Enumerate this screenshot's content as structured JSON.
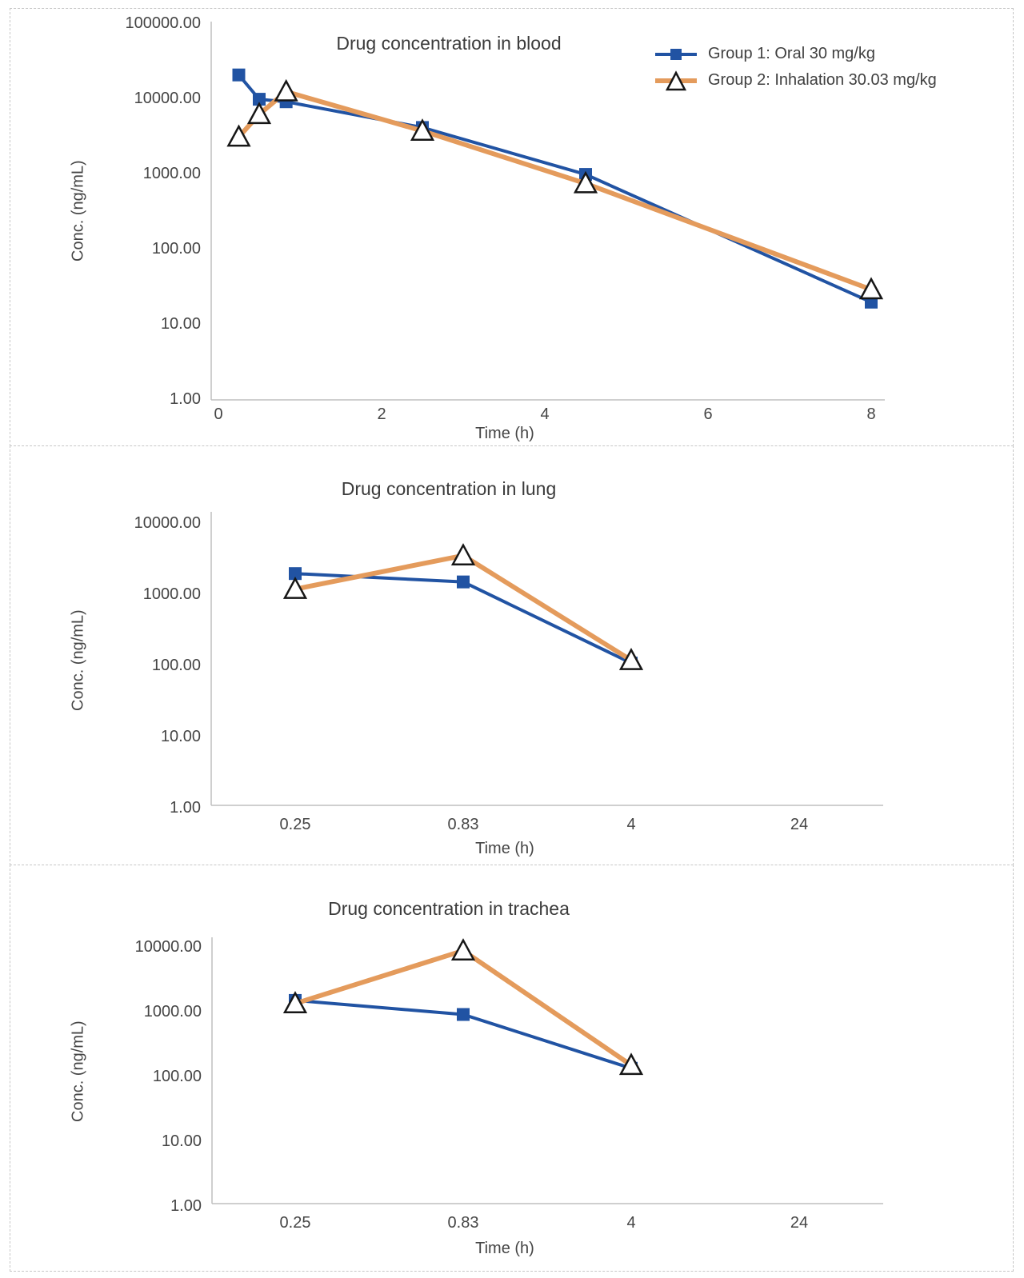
{
  "colors": {
    "group1_blue": "#2153A3",
    "group2_orange": "#E49B5C",
    "marker_outline": "#161616",
    "axis_line": "#bfbfbf",
    "text": "#454545",
    "panel_border": "#c6c6c6"
  },
  "legend": {
    "items": [
      {
        "key": "group1",
        "marker": "square",
        "label": "Group 1: Oral 30 mg/kg"
      },
      {
        "key": "group2",
        "marker": "triangle",
        "label": "Group 2: Inhalation 30.03 mg/kg"
      }
    ]
  },
  "chart_data": [
    {
      "id": "blood",
      "type": "line",
      "title": "Drug concentration in blood",
      "xlabel": "Time (h)",
      "ylabel": "Conc. (ng/mL)",
      "y_axis": {
        "scale": "log",
        "range": [
          1,
          100000
        ],
        "tick_labels": [
          "100000.00",
          "10000.00",
          "1000.00",
          "100.00",
          "10.00",
          "1.00"
        ]
      },
      "x_axis": {
        "type": "linear",
        "range": [
          0,
          8.2
        ],
        "tick_values": [
          0,
          2,
          4,
          6,
          8
        ],
        "tick_labels": [
          "0",
          "2",
          "4",
          "6",
          "8"
        ]
      },
      "grid": false,
      "legend_position": "top-right",
      "series": [
        {
          "name": "Group 1: Oral 30 mg/kg",
          "key": "group1",
          "marker": "square",
          "color": "#2153A3",
          "points": [
            [
              0.25,
              20000
            ],
            [
              0.5,
              9500
            ],
            [
              0.83,
              8800
            ],
            [
              2.5,
              4000
            ],
            [
              4.5,
              950
            ],
            [
              8,
              19
            ]
          ]
        },
        {
          "name": "Group 2: Inhalation 30.03 mg/kg",
          "key": "group2",
          "marker": "triangle",
          "color": "#E49B5C",
          "points": [
            [
              0.25,
              3000
            ],
            [
              0.5,
              6000
            ],
            [
              0.83,
              12000
            ],
            [
              2.5,
              3600
            ],
            [
              4.5,
              720
            ],
            [
              8,
              28
            ]
          ]
        }
      ]
    },
    {
      "id": "lung",
      "type": "line",
      "title": "Drug concentration in lung",
      "xlabel": "Time (h)",
      "ylabel": "Conc. (ng/mL)",
      "y_axis": {
        "scale": "log",
        "range": [
          1,
          10000
        ],
        "tick_labels": [
          "10000.00",
          "1000.00",
          "100.00",
          "10.00",
          "1.00"
        ]
      },
      "x_axis": {
        "type": "categorical",
        "categories": [
          "0.25",
          "0.83",
          "4",
          "24"
        ]
      },
      "grid": false,
      "legend_position": "none",
      "series": [
        {
          "name": "Group 1: Oral 30 mg/kg",
          "key": "group1",
          "marker": "square",
          "color": "#2153A3",
          "points_by_category_index": [
            [
              0,
              1900
            ],
            [
              1,
              1450
            ],
            [
              2,
              105
            ]
          ]
        },
        {
          "name": "Group 2: Inhalation 30.03 mg/kg",
          "key": "group2",
          "marker": "triangle",
          "color": "#E49B5C",
          "points_by_category_index": [
            [
              0,
              1150
            ],
            [
              1,
              3400
            ],
            [
              2,
              115
            ]
          ]
        }
      ]
    },
    {
      "id": "trachea",
      "type": "line",
      "title": "Drug concentration in trachea",
      "xlabel": "Time (h)",
      "ylabel": "Conc. (ng/mL)",
      "y_axis": {
        "scale": "log",
        "range": [
          1,
          10000
        ],
        "tick_labels": [
          "10000.00",
          "1000.00",
          "100.00",
          "10.00",
          "1.00"
        ]
      },
      "x_axis": {
        "type": "categorical",
        "categories": [
          "0.25",
          "0.83",
          "4",
          "24"
        ]
      },
      "grid": false,
      "legend_position": "none",
      "series": [
        {
          "name": "Group 1: Oral 30 mg/kg",
          "key": "group1",
          "marker": "square",
          "color": "#2153A3",
          "points_by_category_index": [
            [
              0,
              1450
            ],
            [
              1,
              880
            ],
            [
              2,
              130
            ]
          ]
        },
        {
          "name": "Group 2: Inhalation 30.03 mg/kg",
          "key": "group2",
          "marker": "triangle",
          "color": "#E49B5C",
          "points_by_category_index": [
            [
              0,
              1300
            ],
            [
              1,
              8500
            ],
            [
              2,
              145
            ]
          ]
        }
      ]
    }
  ]
}
